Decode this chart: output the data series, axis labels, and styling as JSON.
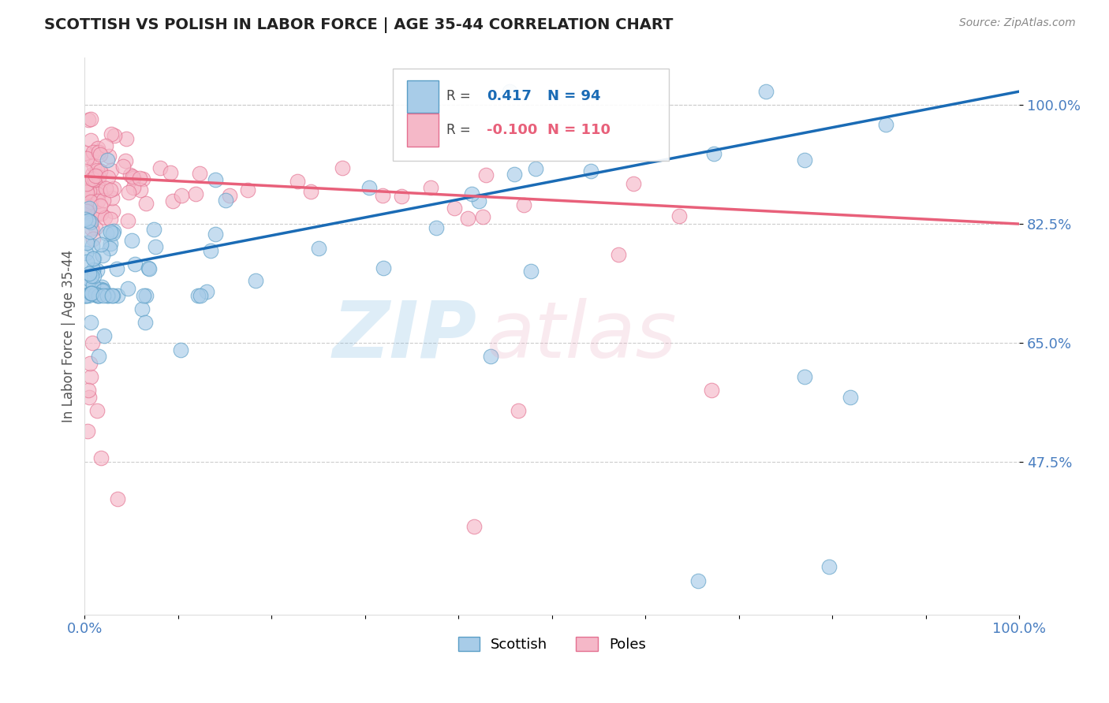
{
  "title": "SCOTTISH VS POLISH IN LABOR FORCE | AGE 35-44 CORRELATION CHART",
  "source_text": "Source: ZipAtlas.com",
  "ylabel": "In Labor Force | Age 35-44",
  "xlim": [
    0.0,
    1.0
  ],
  "ylim": [
    0.25,
    1.07
  ],
  "yticks": [
    0.475,
    0.65,
    0.825,
    1.0
  ],
  "ytick_labels": [
    "47.5%",
    "65.0%",
    "82.5%",
    "100.0%"
  ],
  "xticks": [
    0.0,
    0.1,
    0.2,
    0.3,
    0.4,
    0.5,
    0.6,
    0.7,
    0.8,
    0.9,
    1.0
  ],
  "xtick_labels": [
    "0.0%",
    "",
    "",
    "",
    "",
    "",
    "",
    "",
    "",
    "",
    "100.0%"
  ],
  "scottish_color": "#a8cce8",
  "poles_color": "#f5b8c8",
  "scottish_edge": "#5a9ec6",
  "poles_edge": "#e47090",
  "trendline_scottish": "#1a6bb5",
  "trendline_poles": "#e8607a",
  "R_scottish": 0.417,
  "N_scottish": 94,
  "R_poles": -0.1,
  "N_poles": 110,
  "legend_scottish": "Scottish",
  "legend_poles": "Poles",
  "background_color": "#ffffff",
  "grid_color": "#cccccc",
  "title_color": "#222222",
  "axis_label_color": "#555555",
  "tick_label_color": "#4a7fc1",
  "source_color": "#888888",
  "trend_s_x0": 0.0,
  "trend_s_y0": 0.755,
  "trend_s_x1": 1.0,
  "trend_s_y1": 1.02,
  "trend_p_x0": 0.0,
  "trend_p_y0": 0.895,
  "trend_p_x1": 1.0,
  "trend_p_y1": 0.825
}
